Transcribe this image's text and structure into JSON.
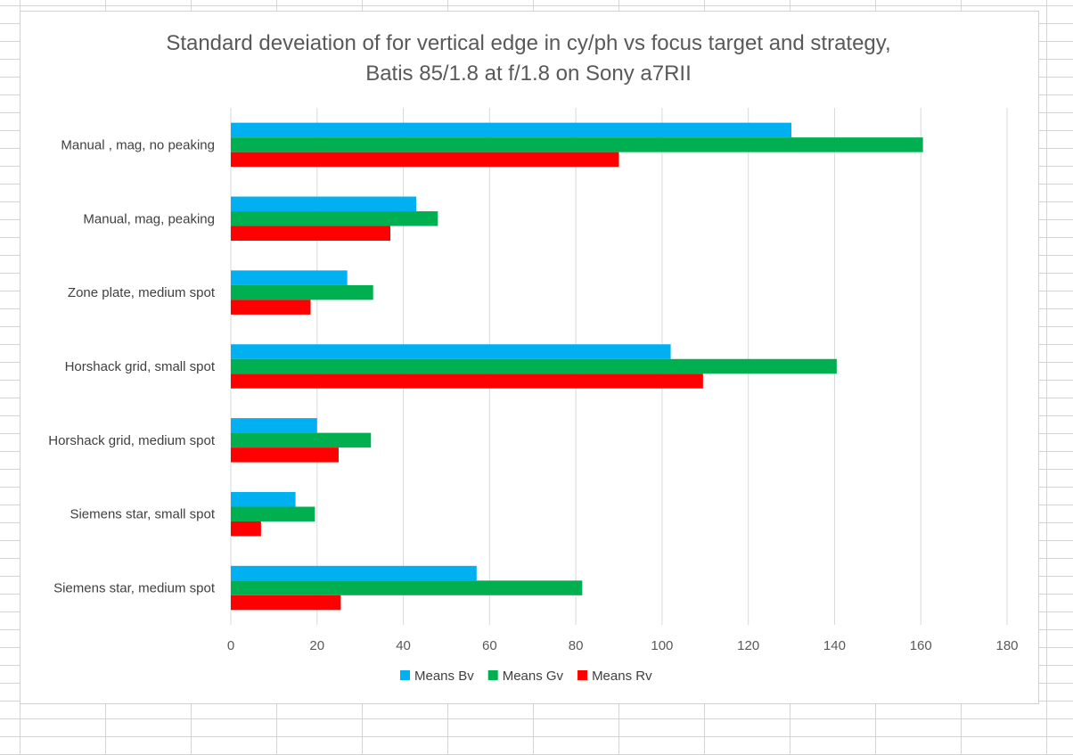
{
  "chart_data": {
    "type": "bar",
    "orientation": "horizontal",
    "title_lines": [
      "Standard deveiation of for vertical edge in cy/ph vs focus target and strategy,",
      "Batis 85/1.8 at f/1.8 on Sony a7RII"
    ],
    "categories": [
      "Manual , mag, no peaking",
      "Manual, mag, peaking",
      "Zone plate, medium spot",
      "Horshack grid, small spot",
      "Horshack grid, medium spot",
      "Siemens star, small spot",
      "Siemens star, medium spot"
    ],
    "series": [
      {
        "name": "Means Bv",
        "color": "#00b0f0",
        "values": [
          130,
          43,
          27,
          102,
          20,
          15,
          57
        ]
      },
      {
        "name": "Means Gv",
        "color": "#00b050",
        "values": [
          160.5,
          48,
          33,
          140.5,
          32.5,
          19.5,
          81.5
        ]
      },
      {
        "name": "Means Rv",
        "color": "#ff0000",
        "values": [
          90,
          37,
          18.5,
          109.5,
          25,
          7,
          25.5
        ]
      }
    ],
    "xlim": [
      0,
      180
    ],
    "xticks": [
      0,
      20,
      40,
      60,
      80,
      100,
      120,
      140,
      160,
      180
    ],
    "grid": true,
    "legend_position": "bottom"
  }
}
